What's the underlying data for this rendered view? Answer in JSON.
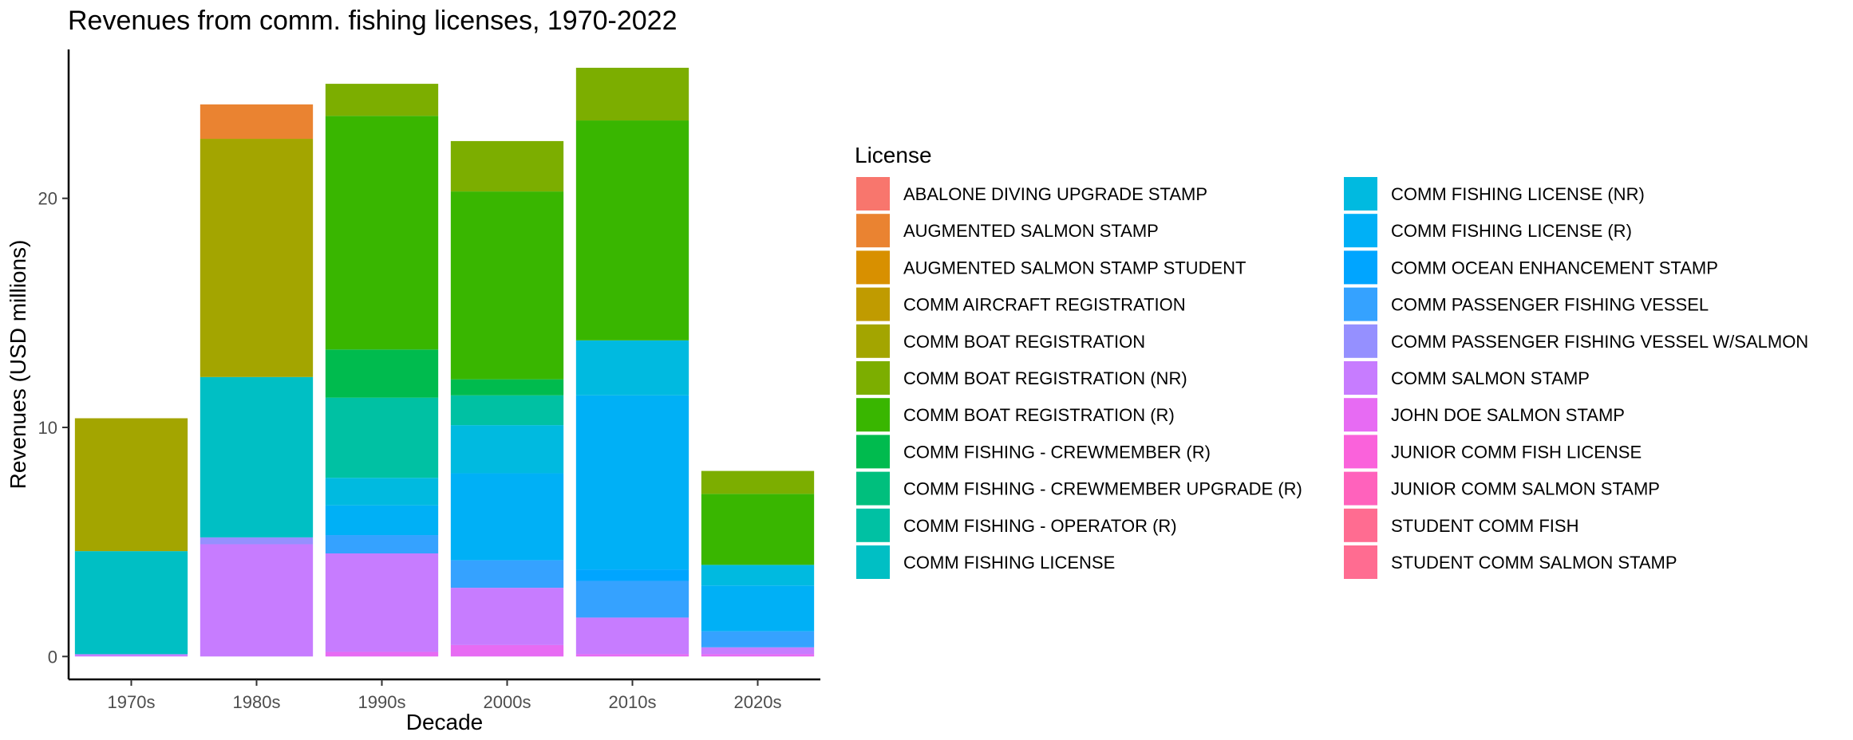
{
  "chart_data": {
    "type": "bar",
    "stacked": true,
    "title": "Revenues from comm. fishing licenses, 1970-2022",
    "xlabel": "Decade",
    "ylabel": "Revenues (USD millions)",
    "ylim": [
      -1,
      26.5
    ],
    "yticks": [
      0,
      10,
      20
    ],
    "grid": false,
    "legend_title": "License",
    "legend_position": "right",
    "categories": [
      "1970s",
      "1980s",
      "1990s",
      "2000s",
      "2010s",
      "2020s"
    ],
    "series": [
      {
        "name": "ABALONE DIVING UPGRADE STAMP",
        "color": "#F8766D",
        "values": [
          0,
          0,
          0,
          0,
          0,
          0
        ]
      },
      {
        "name": "AUGMENTED SALMON STAMP",
        "color": "#EA8331",
        "values": [
          0,
          1.5,
          0,
          0,
          0,
          0
        ]
      },
      {
        "name": "AUGMENTED SALMON STAMP STUDENT",
        "color": "#D89000",
        "values": [
          0,
          0,
          0,
          0,
          0,
          0
        ]
      },
      {
        "name": "COMM AIRCRAFT REGISTRATION",
        "color": "#C09B00",
        "values": [
          0,
          0,
          0,
          0,
          0,
          0
        ]
      },
      {
        "name": "COMM BOAT REGISTRATION",
        "color": "#A3A500",
        "values": [
          5.8,
          10.4,
          0,
          0,
          0,
          0
        ]
      },
      {
        "name": "COMM BOAT REGISTRATION (NR)",
        "color": "#7CAE00",
        "values": [
          0,
          0,
          1.4,
          2.2,
          2.3,
          1.0
        ]
      },
      {
        "name": "COMM BOAT REGISTRATION (R)",
        "color": "#39B600",
        "values": [
          0,
          0,
          10.2,
          8.2,
          9.6,
          3.1
        ]
      },
      {
        "name": "COMM FISHING - CREWMEMBER (R)",
        "color": "#00BB4E",
        "values": [
          0,
          0,
          2.1,
          0.7,
          0,
          0
        ]
      },
      {
        "name": "COMM FISHING - CREWMEMBER UPGRADE (R)",
        "color": "#00BF7D",
        "values": [
          0,
          0,
          0,
          0,
          0,
          0
        ]
      },
      {
        "name": "COMM FISHING - OPERATOR (R)",
        "color": "#00C1A3",
        "values": [
          0,
          0,
          3.5,
          1.3,
          0,
          0
        ]
      },
      {
        "name": "COMM FISHING LICENSE",
        "color": "#00BFC4",
        "values": [
          4.5,
          7.0,
          0,
          0,
          0,
          0
        ]
      },
      {
        "name": "COMM FISHING LICENSE (NR)",
        "color": "#00BAE0",
        "values": [
          0,
          0,
          1.2,
          2.1,
          2.4,
          0.9
        ]
      },
      {
        "name": "COMM FISHING LICENSE (R)",
        "color": "#00B0F6",
        "values": [
          0,
          0,
          1.3,
          3.8,
          7.6,
          2.0
        ]
      },
      {
        "name": "COMM OCEAN ENHANCEMENT STAMP",
        "color": "#00A5FF",
        "values": [
          0,
          0,
          0,
          0,
          0.5,
          0
        ]
      },
      {
        "name": "COMM PASSENGER FISHING VESSEL",
        "color": "#35A2FF",
        "values": [
          0,
          0,
          0.8,
          1.2,
          1.6,
          0.7
        ]
      },
      {
        "name": "COMM PASSENGER FISHING VESSEL W/SALMON",
        "color": "#9590FF",
        "values": [
          0,
          0.3,
          0,
          0,
          0,
          0
        ]
      },
      {
        "name": "COMM SALMON STAMP",
        "color": "#C77CFF",
        "values": [
          0.1,
          4.9,
          4.3,
          2.5,
          1.6,
          0.3
        ]
      },
      {
        "name": "JOHN DOE SALMON STAMP",
        "color": "#E76BF3",
        "values": [
          0,
          0,
          0.2,
          0.5,
          0.1,
          0.1
        ]
      },
      {
        "name": "JUNIOR COMM FISH LICENSE",
        "color": "#FA62DB",
        "values": [
          0,
          0,
          0,
          0,
          0,
          0
        ]
      },
      {
        "name": "JUNIOR COMM SALMON STAMP",
        "color": "#FF62BC",
        "values": [
          0,
          0,
          0,
          0,
          0,
          0
        ]
      },
      {
        "name": "STUDENT COMM FISH",
        "color": "#FF6C91",
        "values": [
          0,
          0,
          0,
          0,
          0,
          0
        ]
      },
      {
        "name": "STUDENT COMM SALMON STAMP",
        "color": "#FF6C91",
        "values": [
          0,
          0,
          0,
          0,
          0,
          0
        ]
      }
    ]
  }
}
